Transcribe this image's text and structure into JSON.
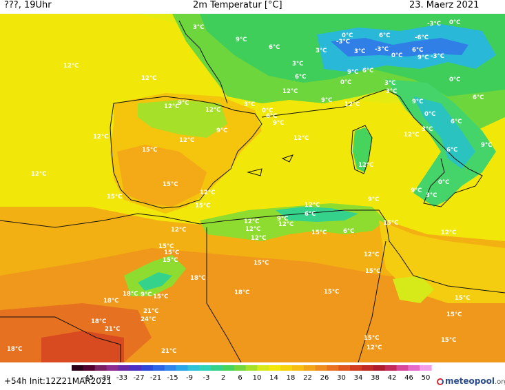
{
  "header": {
    "left": "???, 19Uhr",
    "center": "2m Temperatur [°C]",
    "right": "23. Maerz 2021"
  },
  "footer": {
    "run": "+54h Init:12Z21MAR2021",
    "brand": "meteopool",
    "brand_domain": ".org"
  },
  "legend": {
    "ticks": [
      "-45",
      "-39",
      "-33",
      "-27",
      "-21",
      "-15",
      "-9",
      "-3",
      "2",
      "6",
      "10",
      "14",
      "18",
      "22",
      "26",
      "30",
      "34",
      "38",
      "42",
      "46",
      "50"
    ],
    "colors": [
      "#2b0018",
      "#54002f",
      "#7a1f5f",
      "#8e2b8f",
      "#6a2aa8",
      "#4a2fc2",
      "#2f46d8",
      "#2c64e6",
      "#2f86ec",
      "#2aa7e8",
      "#2ec3d8",
      "#2fd3b8",
      "#35d28c",
      "#47d45c",
      "#72d63c",
      "#a6e028",
      "#d6ea1a",
      "#f2e80a",
      "#f6d40c",
      "#f6bd12",
      "#f3a519",
      "#ef8c1f",
      "#ea7220",
      "#e1571f",
      "#d33d1f",
      "#c12a25",
      "#ad1d2e",
      "#c22a5a",
      "#d9479a",
      "#e66bc9",
      "#f29ee8"
    ]
  },
  "map": {
    "labels": [
      {
        "t": "12°C",
        "c": "iberia"
      },
      {
        "t": "12°C",
        "c": "iberia"
      },
      {
        "t": "12°C",
        "c": "iberia"
      },
      {
        "t": "12°C",
        "c": "iberia"
      },
      {
        "t": "12°C",
        "c": "iberia"
      },
      {
        "t": "9°C",
        "c": "iberia"
      },
      {
        "t": "12°C",
        "c": "iberia"
      },
      {
        "t": "9°C",
        "c": "iberia"
      },
      {
        "t": "12°C",
        "c": "iberia"
      },
      {
        "t": "15°C",
        "c": "iberia"
      },
      {
        "t": "15°C",
        "c": "iberia"
      },
      {
        "t": "15°C",
        "c": "iberia"
      },
      {
        "t": "12°C",
        "c": "iberia"
      },
      {
        "t": "15°C",
        "c": "iberia"
      },
      {
        "t": "3°C",
        "c": "pyrenees"
      },
      {
        "t": "0°C",
        "c": "pyrenees"
      },
      {
        "t": "6°C",
        "c": "pyrenees"
      },
      {
        "t": "9°C",
        "c": "pyrenees"
      },
      {
        "t": "3°C",
        "c": "france"
      },
      {
        "t": "9°C",
        "c": "france"
      },
      {
        "t": "6°C",
        "c": "france"
      },
      {
        "t": "3°C",
        "c": "france"
      },
      {
        "t": "6°C",
        "c": "france"
      },
      {
        "t": "12°C",
        "c": "france"
      },
      {
        "t": "0°C",
        "c": "alps"
      },
      {
        "t": "-3°C",
        "c": "alps"
      },
      {
        "t": "6°C",
        "c": "alps"
      },
      {
        "t": "-6°C",
        "c": "alps"
      },
      {
        "t": "-3°C",
        "c": "alps"
      },
      {
        "t": "0°C",
        "c": "alps"
      },
      {
        "t": "3°C",
        "c": "alps"
      },
      {
        "t": "3°C",
        "c": "alps"
      },
      {
        "t": "-3°C",
        "c": "alps"
      },
      {
        "t": "0°C",
        "c": "alps"
      },
      {
        "t": "6°C",
        "c": "alps"
      },
      {
        "t": "9°C",
        "c": "alps"
      },
      {
        "t": "-3°C",
        "c": "alps"
      },
      {
        "t": "9°C",
        "c": "alps"
      },
      {
        "t": "6°C",
        "c": "alps"
      },
      {
        "t": "0°C",
        "c": "alps"
      },
      {
        "t": "0°C",
        "c": "alps"
      },
      {
        "t": "3°C",
        "c": "alps"
      },
      {
        "t": "3°C",
        "c": "alps"
      },
      {
        "t": "6°C",
        "c": "alps"
      },
      {
        "t": "9°C",
        "c": "med"
      },
      {
        "t": "12°C",
        "c": "med"
      },
      {
        "t": "12°C",
        "c": "med"
      },
      {
        "t": "9°C",
        "c": "med"
      },
      {
        "t": "3°C",
        "c": "italy"
      },
      {
        "t": "0°C",
        "c": "italy"
      },
      {
        "t": "6°C",
        "c": "italy"
      },
      {
        "t": "12°C",
        "c": "italy"
      },
      {
        "t": "6°C",
        "c": "italy"
      },
      {
        "t": "9°C",
        "c": "italy"
      },
      {
        "t": "12°C",
        "c": "italy"
      },
      {
        "t": "0°C",
        "c": "italy"
      },
      {
        "t": "9°C",
        "c": "italy"
      },
      {
        "t": "3°C",
        "c": "italy"
      },
      {
        "t": "12°C",
        "c": "italy"
      },
      {
        "t": "12°C",
        "c": "africa"
      },
      {
        "t": "9°C",
        "c": "africa"
      },
      {
        "t": "12°C",
        "c": "africa"
      },
      {
        "t": "6°C",
        "c": "africa"
      },
      {
        "t": "12°C",
        "c": "africa"
      },
      {
        "t": "9°C",
        "c": "africa"
      },
      {
        "t": "15°C",
        "c": "africa"
      },
      {
        "t": "6°C",
        "c": "africa"
      },
      {
        "t": "12°C",
        "c": "africa"
      },
      {
        "t": "15°C",
        "c": "africa"
      },
      {
        "t": "12°C",
        "c": "africa"
      },
      {
        "t": "15°C",
        "c": "africa"
      },
      {
        "t": "12°C",
        "c": "africa"
      },
      {
        "t": "15°C",
        "c": "africa"
      },
      {
        "t": "18°C",
        "c": "africa"
      },
      {
        "t": "15°C",
        "c": "africa"
      },
      {
        "t": "15°C",
        "c": "africa"
      },
      {
        "t": "18°C",
        "c": "africa"
      },
      {
        "t": "12°C",
        "c": "africa"
      },
      {
        "t": "15°C",
        "c": "africa"
      },
      {
        "t": "18°C",
        "c": "africa"
      },
      {
        "t": "9°C",
        "c": "africa"
      },
      {
        "t": "15°C",
        "c": "africa"
      },
      {
        "t": "18°C",
        "c": "africa"
      },
      {
        "t": "15°C",
        "c": "africa"
      },
      {
        "t": "18°C",
        "c": "africa"
      },
      {
        "t": "21°C",
        "c": "africa"
      },
      {
        "t": "24°C",
        "c": "africa"
      },
      {
        "t": "21°C",
        "c": "africa"
      },
      {
        "t": "15°C",
        "c": "africa"
      },
      {
        "t": "12°C",
        "c": "africa"
      },
      {
        "t": "15°C",
        "c": "africa"
      },
      {
        "t": "15°C",
        "c": "africa"
      },
      {
        "t": "15°C",
        "c": "africa"
      },
      {
        "t": "18°C",
        "c": "africa"
      },
      {
        "t": "21°C",
        "c": "africa"
      }
    ]
  }
}
